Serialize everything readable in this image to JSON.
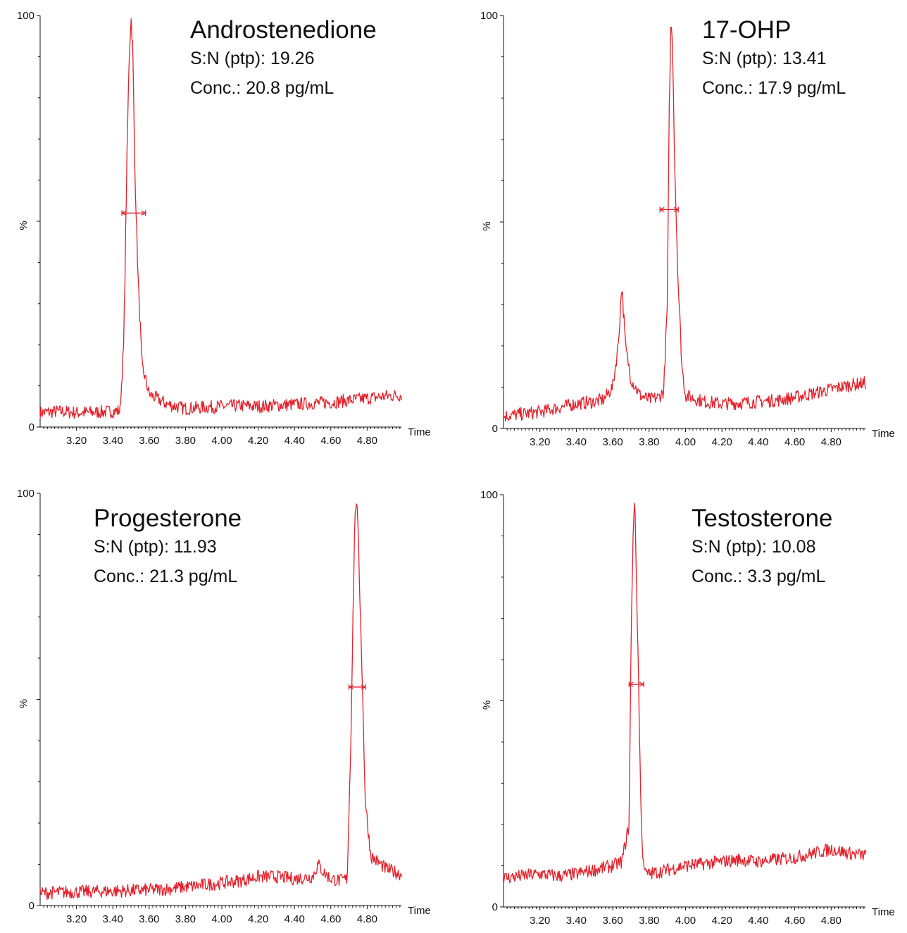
{
  "chart_data": [
    {
      "type": "line",
      "title": "Androstenedione",
      "annotations": [
        "S:N (ptp): 19.26",
        "Conc.: 20.8 pg/mL"
      ],
      "xlabel": "Time",
      "ylabel": "%",
      "xlim": [
        3.0,
        5.0
      ],
      "ylim": [
        0,
        100
      ],
      "x_ticks": [
        "3.20",
        "3.40",
        "3.60",
        "3.80",
        "4.00",
        "4.20",
        "4.40",
        "4.60",
        "4.80"
      ],
      "y_ticks": [
        "0",
        "100"
      ],
      "color": "#e3202a",
      "series": [
        {
          "x": [
            3.0,
            3.1,
            3.2,
            3.3,
            3.4,
            3.44,
            3.46,
            3.48,
            3.49,
            3.5,
            3.51,
            3.52,
            3.54,
            3.56,
            3.6,
            3.7,
            3.8,
            3.9,
            4.0,
            4.1,
            4.2,
            4.3,
            4.4,
            4.5,
            4.6,
            4.7,
            4.8,
            4.9,
            4.99
          ],
          "y": [
            3.5,
            3.8,
            3.5,
            3.6,
            3.8,
            4.0,
            20.0,
            70.0,
            90.0,
            100.0,
            92.0,
            65.0,
            35.0,
            15.0,
            8.0,
            5.5,
            4.5,
            4.8,
            5.0,
            5.2,
            5.0,
            5.3,
            5.5,
            5.8,
            6.0,
            6.5,
            7.0,
            7.5,
            7.8
          ]
        }
      ],
      "width_marker": {
        "x_start": 3.45,
        "x_end": 3.58,
        "y": 52
      }
    },
    {
      "type": "line",
      "title": "17-OHP",
      "annotations": [
        "S:N (ptp): 13.41",
        "Conc.: 17.9 pg/mL"
      ],
      "xlabel": "Time",
      "ylabel": "%",
      "xlim": [
        3.0,
        5.0
      ],
      "ylim": [
        0,
        100
      ],
      "x_ticks": [
        "3.20",
        "3.40",
        "3.60",
        "3.80",
        "4.00",
        "4.20",
        "4.40",
        "4.60",
        "4.80"
      ],
      "y_ticks": [
        "0",
        "100"
      ],
      "color": "#e3202a",
      "series": [
        {
          "x": [
            3.0,
            3.1,
            3.2,
            3.3,
            3.4,
            3.5,
            3.55,
            3.6,
            3.63,
            3.65,
            3.67,
            3.7,
            3.75,
            3.8,
            3.85,
            3.88,
            3.9,
            3.91,
            3.92,
            3.93,
            3.94,
            3.96,
            3.98,
            4.0,
            4.1,
            4.2,
            4.3,
            4.4,
            4.5,
            4.6,
            4.7,
            4.8,
            4.9,
            4.99
          ],
          "y": [
            3.0,
            3.5,
            4.0,
            5.0,
            6.0,
            6.5,
            7.0,
            10.0,
            20.0,
            35.0,
            20.0,
            12.0,
            8.0,
            7.0,
            7.5,
            9.0,
            30.0,
            75.0,
            100.0,
            90.0,
            65.0,
            35.0,
            15.0,
            8.0,
            6.5,
            6.0,
            6.2,
            6.5,
            6.8,
            7.5,
            8.5,
            9.5,
            10.5,
            11.0
          ]
        }
      ],
      "width_marker": {
        "x_start": 3.86,
        "x_end": 3.96,
        "y": 53
      }
    },
    {
      "type": "line",
      "title": "Progesterone",
      "annotations": [
        "S:N (ptp): 11.93",
        "Conc.: 21.3 pg/mL"
      ],
      "xlabel": "Time",
      "ylabel": "%",
      "xlim": [
        3.0,
        5.0
      ],
      "ylim": [
        0,
        100
      ],
      "x_ticks": [
        "3.20",
        "3.40",
        "3.60",
        "3.80",
        "4.00",
        "4.20",
        "4.40",
        "4.60",
        "4.80"
      ],
      "y_ticks": [
        "0",
        "100"
      ],
      "color": "#e3202a",
      "series": [
        {
          "x": [
            3.0,
            3.1,
            3.2,
            3.3,
            3.4,
            3.5,
            3.6,
            3.7,
            3.8,
            3.9,
            4.0,
            4.1,
            4.2,
            4.3,
            4.4,
            4.5,
            4.53,
            4.56,
            4.6,
            4.65,
            4.69,
            4.71,
            4.73,
            4.74,
            4.75,
            4.77,
            4.79,
            4.82,
            4.9,
            4.99
          ],
          "y": [
            3.0,
            3.2,
            3.3,
            3.4,
            3.5,
            3.6,
            3.8,
            4.0,
            4.5,
            5.0,
            5.5,
            6.0,
            7.0,
            7.0,
            6.5,
            7.0,
            10.0,
            8.0,
            6.5,
            6.0,
            6.5,
            40.0,
            90.0,
            100.0,
            90.0,
            60.0,
            25.0,
            12.0,
            9.0,
            7.5
          ]
        }
      ],
      "width_marker": {
        "x_start": 4.7,
        "x_end": 4.79,
        "y": 53
      }
    },
    {
      "type": "line",
      "title": "Testosterone",
      "annotations": [
        "S:N (ptp): 10.08",
        "Conc.: 3.3 pg/mL"
      ],
      "xlabel": "Time",
      "ylabel": "%",
      "xlim": [
        3.0,
        5.0
      ],
      "ylim": [
        0,
        100
      ],
      "x_ticks": [
        "3.20",
        "3.40",
        "3.60",
        "3.80",
        "4.00",
        "4.20",
        "4.40",
        "4.60",
        "4.80"
      ],
      "y_ticks": [
        "0",
        "100"
      ],
      "color": "#e3202a",
      "series": [
        {
          "x": [
            3.0,
            3.1,
            3.2,
            3.3,
            3.4,
            3.5,
            3.6,
            3.65,
            3.69,
            3.7,
            3.71,
            3.72,
            3.73,
            3.74,
            3.75,
            3.76,
            3.78,
            3.8,
            3.9,
            4.0,
            4.1,
            4.2,
            4.3,
            4.4,
            4.5,
            4.6,
            4.7,
            4.8,
            4.9,
            4.99
          ],
          "y": [
            7.0,
            7.5,
            8.0,
            7.5,
            8.0,
            9.0,
            10.0,
            11.0,
            20.0,
            60.0,
            88.0,
            100.0,
            80.0,
            60.0,
            35.0,
            15.0,
            8.0,
            8.0,
            9.0,
            10.0,
            10.5,
            11.0,
            11.5,
            11.0,
            11.5,
            12.0,
            13.0,
            14.0,
            13.0,
            12.5
          ]
        }
      ],
      "width_marker": {
        "x_start": 3.69,
        "x_end": 3.77,
        "y": 54
      }
    }
  ]
}
